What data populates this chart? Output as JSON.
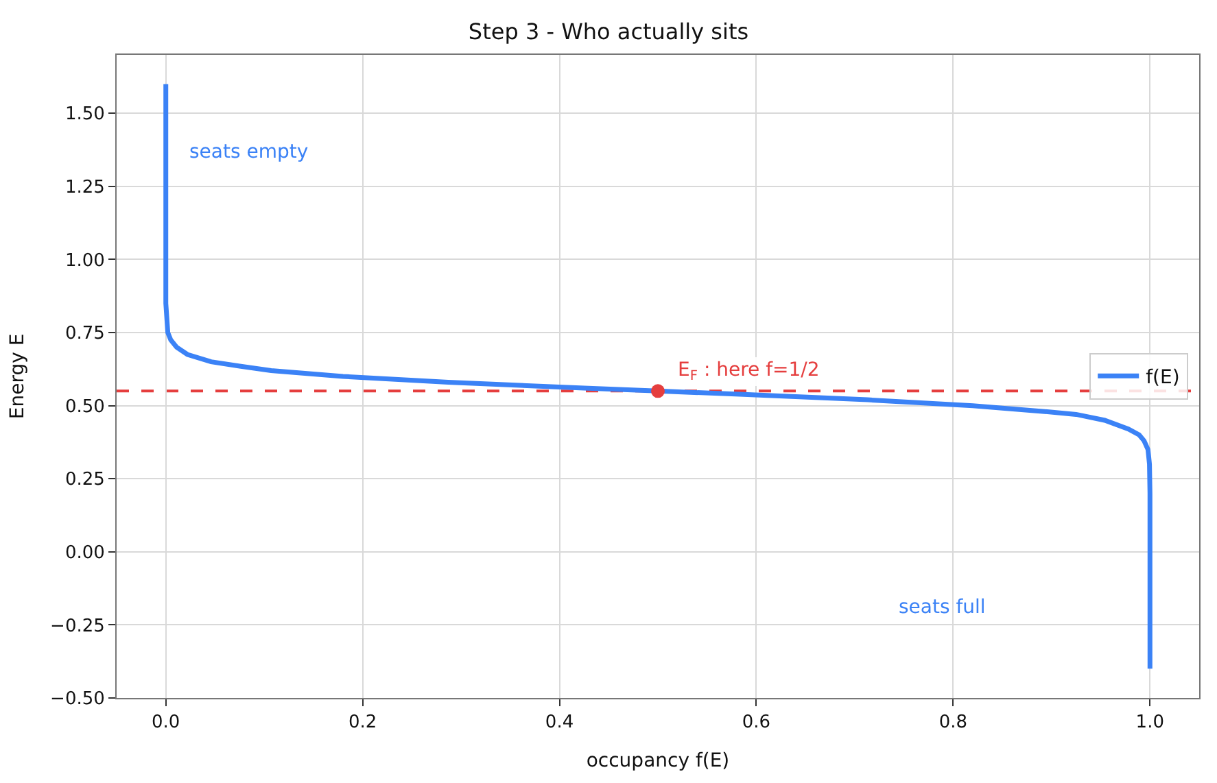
{
  "chart_data": {
    "type": "line",
    "title": "Step 3 - Who actually sits",
    "xlabel": "occupancy f(E)",
    "ylabel": "Energy E",
    "series": [
      {
        "name": "f(E)",
        "color": "#3b82f6",
        "x": [
          1.0,
          1.0,
          0.9995,
          0.998,
          0.994,
          0.989,
          0.978,
          0.954,
          0.925,
          0.893,
          0.82,
          0.713,
          0.575,
          0.5,
          0.425,
          0.287,
          0.18,
          0.107,
          0.075,
          0.046,
          0.022,
          0.011,
          0.005,
          0.002,
          0.0,
          0.0
        ],
        "values": [
          -0.4,
          0.2,
          0.3,
          0.35,
          0.38,
          0.4,
          0.42,
          0.45,
          0.47,
          0.48,
          0.5,
          0.52,
          0.54,
          0.55,
          0.56,
          0.58,
          0.6,
          0.62,
          0.635,
          0.65,
          0.675,
          0.7,
          0.725,
          0.75,
          0.85,
          1.6
        ]
      },
      {
        "type": "scatter",
        "color": "#e53e3e",
        "marker": "circle",
        "x": [
          0.5
        ],
        "values": [
          0.55
        ]
      }
    ],
    "ref_lines": [
      {
        "axis": "y",
        "value": 0.55,
        "color": "#e53e3e",
        "line_style": "dashed"
      }
    ],
    "annotations": [
      "seats empty",
      "seats full",
      {
        "text": "E$_{F}$ : here f=1/2",
        "x": 0.5,
        "y": 0.55
      }
    ],
    "xlim": [
      -0.05,
      1.05
    ],
    "xticks": [
      {
        "value": 0,
        "label": "0.0"
      },
      0.2,
      0.4,
      0.6,
      0.8,
      {
        "value": 1,
        "label": "1.0"
      }
    ],
    "ylim": [
      -0.5,
      1.7
    ],
    "yticks": [
      {
        "value": -0.5,
        "label": "−0.50"
      },
      {
        "value": -0.25,
        "label": "−0.25"
      },
      {
        "value": 0,
        "label": "0.00"
      },
      {
        "value": 0.25,
        "label": "0.25"
      },
      {
        "value": 0.5,
        "label": "0.50"
      },
      {
        "value": 0.75,
        "label": "0.75"
      },
      {
        "value": 1,
        "label": "1.00"
      },
      {
        "value": 1.25,
        "label": "1.25"
      },
      {
        "value": 1.5,
        "label": "1.50"
      }
    ],
    "grid": true,
    "legend": "center right",
    "line_style": "solid"
  }
}
